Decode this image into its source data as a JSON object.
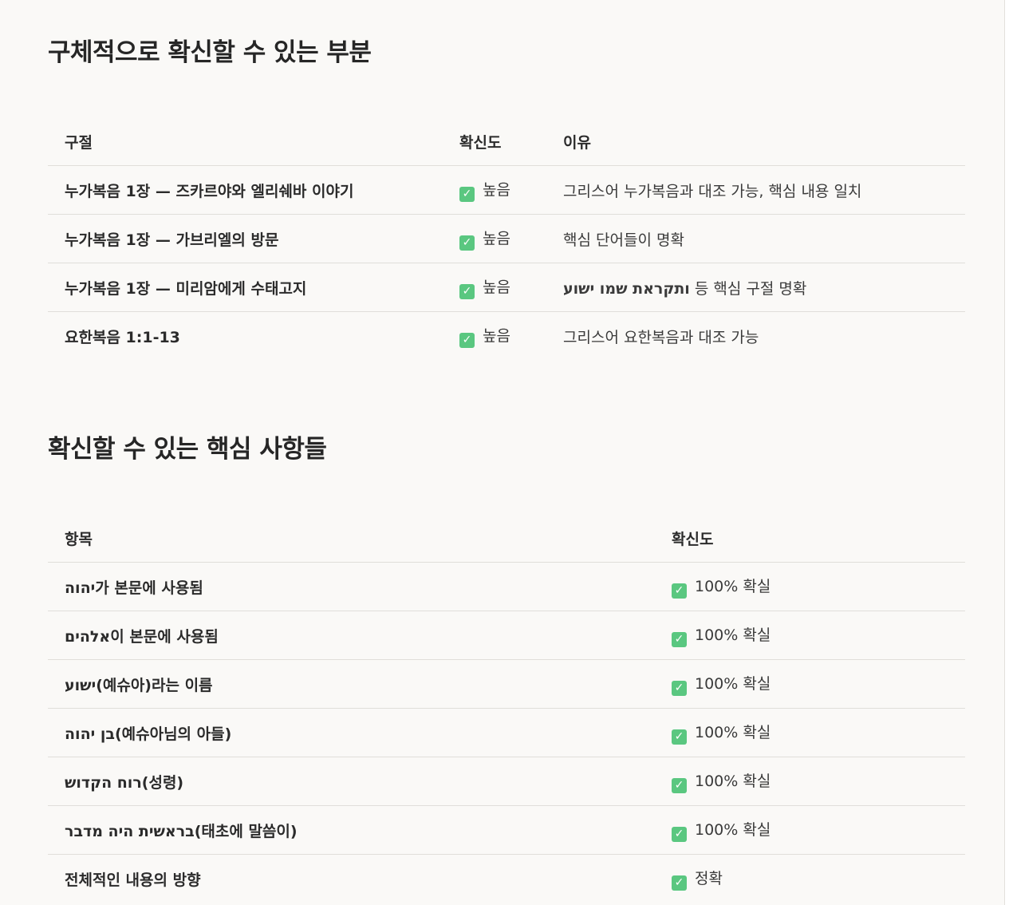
{
  "section1": {
    "title": "구체적으로 확신할 수 있는 부분",
    "headers": [
      "구절",
      "확신도",
      "이유"
    ],
    "rows": [
      {
        "passage": "누가복음 1장 — 즈카르야와 엘리쉐바 이야기",
        "confidence": "높음",
        "reason": "그리스어 누가복음과 대조 가능, 핵심 내용 일치"
      },
      {
        "passage": "누가복음 1장 — 가브리엘의 방문",
        "confidence": "높음",
        "reason": "핵심 단어들이 명확"
      },
      {
        "passage": "누가복음 1장 — 미리암에게 수태고지",
        "confidence": "높음",
        "reason_hebrew": "ותקראת שמו ישוע",
        "reason": " 등 핵심 구절 명확"
      },
      {
        "passage": "요한복음 1:1-13",
        "confidence": "높음",
        "reason": "그리스어 요한복음과 대조 가능"
      }
    ]
  },
  "section2": {
    "title": "확신할 수 있는 핵심 사항들",
    "headers": [
      "항목",
      "확신도"
    ],
    "rows": [
      {
        "hebrew": "יהוה",
        "text": "가 본문에 사용됨",
        "confidence": "100% 확실"
      },
      {
        "hebrew": "אלהים",
        "text": "이 본문에 사용됨",
        "confidence": "100% 확실"
      },
      {
        "hebrew": "ישוע",
        "text": "(예슈아)라는 이름",
        "confidence": "100% 확실"
      },
      {
        "hebrew": "בן יהוה",
        "text": "(예슈아님의 아들)",
        "confidence": "100% 확실"
      },
      {
        "hebrew": "רוח הקדוש",
        "text": "(성령)",
        "confidence": "100% 확실"
      },
      {
        "hebrew": "בראשית היה מדבר",
        "text": "(태초에 말씀이)",
        "confidence": "100% 확실"
      },
      {
        "hebrew": "",
        "text": "전체적인 내용의 방향",
        "confidence": "정확"
      }
    ]
  },
  "colors": {
    "check": "#5ac780",
    "background": "#faf9f7"
  },
  "icons": {
    "check": "check-box-icon"
  }
}
